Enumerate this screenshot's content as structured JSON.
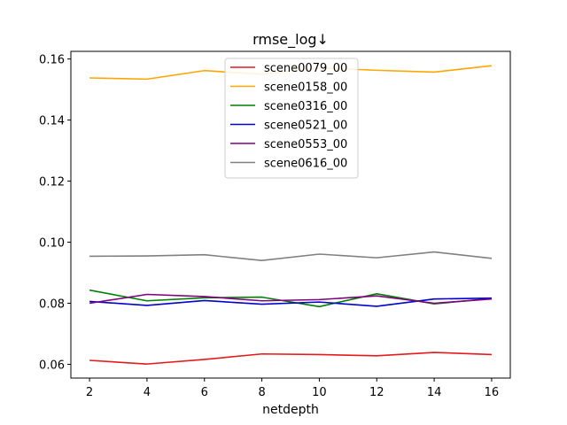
{
  "chart_data": {
    "type": "line",
    "title": "rmse_log↓",
    "xlabel": "netdepth",
    "ylabel": "",
    "x": [
      2,
      4,
      6,
      8,
      10,
      12,
      14,
      16
    ],
    "xlim": [
      1.35,
      16.65
    ],
    "ylim": [
      0.0555,
      0.1625
    ],
    "xticks": [
      "2",
      "4",
      "6",
      "8",
      "10",
      "12",
      "14",
      "16"
    ],
    "yticks": [
      "0.06",
      "0.08",
      "0.10",
      "0.12",
      "0.14",
      "0.16"
    ],
    "legend_position": "top-center",
    "grid": false,
    "series": [
      {
        "name": "scene0079_00",
        "color": "#e41a1c",
        "values": [
          0.0613,
          0.0601,
          0.0616,
          0.0634,
          0.0632,
          0.0628,
          0.0639,
          0.0632
        ]
      },
      {
        "name": "scene0158_00",
        "color": "#ffa500",
        "values": [
          0.1538,
          0.1534,
          0.1562,
          0.155,
          0.1571,
          0.1563,
          0.1557,
          0.1578
        ]
      },
      {
        "name": "scene0316_00",
        "color": "#008000",
        "values": [
          0.0843,
          0.0808,
          0.0818,
          0.082,
          0.0789,
          0.0831,
          0.0798,
          0.0816
        ]
      },
      {
        "name": "scene0521_00",
        "color": "#0000cd",
        "values": [
          0.0806,
          0.0793,
          0.0809,
          0.0797,
          0.0804,
          0.079,
          0.0814,
          0.0817
        ]
      },
      {
        "name": "scene0553_00",
        "color": "#800080",
        "values": [
          0.08,
          0.0829,
          0.0822,
          0.0808,
          0.0812,
          0.0824,
          0.08,
          0.0814
        ]
      },
      {
        "name": "scene0616_00",
        "color": "#808080",
        "values": [
          0.0954,
          0.0955,
          0.0959,
          0.094,
          0.0961,
          0.0949,
          0.0968,
          0.0947
        ]
      }
    ]
  }
}
